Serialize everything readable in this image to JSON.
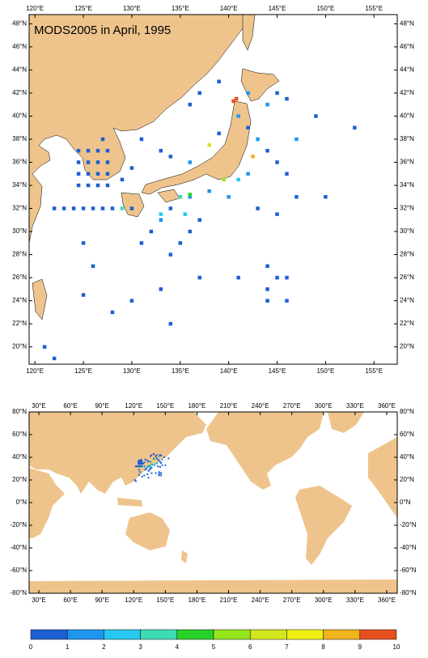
{
  "title": "MODS2005 in April, 1995",
  "maps": [
    {
      "xlim": [
        119.4,
        157.4
      ],
      "ylim": [
        18.5,
        48.8
      ],
      "xticks": [
        {
          "value": 120,
          "label": "120°E"
        },
        {
          "value": 125,
          "label": "125°E"
        },
        {
          "value": 130,
          "label": "130°E"
        },
        {
          "value": 135,
          "label": "135°E"
        },
        {
          "value": 140,
          "label": "140°E"
        },
        {
          "value": 145,
          "label": "145°E"
        },
        {
          "value": 150,
          "label": "150°E"
        },
        {
          "value": 155,
          "label": "155°E"
        }
      ],
      "yticks": [
        {
          "value": 20,
          "label": "20°N"
        },
        {
          "value": 22,
          "label": "22°N"
        },
        {
          "value": 24,
          "label": "24°N"
        },
        {
          "value": 26,
          "label": "26°N"
        },
        {
          "value": 28,
          "label": "28°N"
        },
        {
          "value": 30,
          "label": "30°N"
        },
        {
          "value": 32,
          "label": "32°N"
        },
        {
          "value": 34,
          "label": "34°N"
        },
        {
          "value": 36,
          "label": "36°N"
        },
        {
          "value": 38,
          "label": "38°N"
        },
        {
          "value": 40,
          "label": "40°N"
        },
        {
          "value": 42,
          "label": "42°N"
        },
        {
          "value": 44,
          "label": "44°N"
        },
        {
          "value": 46,
          "label": "46°N"
        },
        {
          "value": 48,
          "label": "48°N"
        }
      ]
    },
    {
      "xlim": [
        20.8,
        370
      ],
      "ylim": [
        -80,
        80
      ],
      "xticks": [
        {
          "value": 30,
          "label": "30°E"
        },
        {
          "value": 60,
          "label": "60°E"
        },
        {
          "value": 90,
          "label": "90°E"
        },
        {
          "value": 120,
          "label": "120°E"
        },
        {
          "value": 150,
          "label": "150°E"
        },
        {
          "value": 180,
          "label": "180°E"
        },
        {
          "value": 210,
          "label": "210°E"
        },
        {
          "value": 240,
          "label": "240°E"
        },
        {
          "value": 270,
          "label": "270°E"
        },
        {
          "value": 300,
          "label": "300°E"
        },
        {
          "value": 330,
          "label": "330°E"
        },
        {
          "value": 360,
          "label": "360°E"
        }
      ],
      "yticks": [
        {
          "value": -80,
          "label": "-80°N"
        },
        {
          "value": -60,
          "label": "-60°N"
        },
        {
          "value": -40,
          "label": "-40°N"
        },
        {
          "value": -20,
          "label": "-20°N"
        },
        {
          "value": 0,
          "label": "0°N"
        },
        {
          "value": 20,
          "label": "20°N"
        },
        {
          "value": 40,
          "label": "40°N"
        },
        {
          "value": 60,
          "label": "60°N"
        },
        {
          "value": 80,
          "label": "80°N"
        }
      ]
    }
  ],
  "points": {
    "lon": [
      124.5,
      125.5,
      126.5,
      127.5,
      124.5,
      125.5,
      126.5,
      127.5,
      124.5,
      125.5,
      126.5,
      127.5,
      124.5,
      125.5,
      126.5,
      127.5,
      122,
      123,
      124,
      125,
      126,
      127,
      128,
      130,
      141,
      142,
      143,
      144,
      145,
      146,
      147,
      144,
      145,
      146,
      142,
      142,
      138,
      136,
      134,
      133,
      132,
      131,
      134,
      135,
      136,
      137,
      140,
      143,
      145,
      147,
      150,
      153,
      149,
      144,
      145,
      146,
      144,
      144,
      146,
      141,
      130,
      128,
      125,
      121,
      122,
      134,
      133,
      137,
      127,
      131,
      133,
      134,
      136,
      139,
      136,
      137,
      139,
      129,
      130,
      126,
      125,
      140.8,
      140.5,
      142.5,
      139.5,
      136,
      135,
      129,
      135.5,
      133,
      141,
      138
    ],
    "lat": [
      37,
      37,
      37,
      37,
      36,
      36,
      36,
      36,
      35,
      35,
      35,
      35,
      34,
      34,
      34,
      34,
      32,
      32,
      32,
      32,
      32,
      32,
      32,
      32,
      40,
      39,
      38,
      37,
      36,
      35,
      38,
      41,
      42,
      41.5,
      42,
      35,
      33.5,
      33,
      32,
      31,
      30,
      29,
      28,
      29,
      30,
      31,
      33,
      32,
      31.5,
      33,
      33,
      39,
      40,
      27,
      26,
      26,
      25,
      24,
      24,
      26,
      24,
      23,
      24.5,
      20,
      19,
      22,
      25,
      26,
      38,
      38,
      37,
      36.5,
      36,
      38.5,
      41,
      42,
      43,
      34.5,
      35.5,
      27,
      29,
      41.5,
      41.3,
      36.5,
      34.5,
      33.2,
      33,
      32,
      31.5,
      31.5,
      34.5,
      37.5
    ],
    "values": [
      0.5,
      0.5,
      0.5,
      0.5,
      0.5,
      0.5,
      0.5,
      0.5,
      0.5,
      0.5,
      0.5,
      0.5,
      0.5,
      0.5,
      0.5,
      0.5,
      0.5,
      0.5,
      0.5,
      0.5,
      0.5,
      0.5,
      0.5,
      0.5,
      1.5,
      0.5,
      1.5,
      0.5,
      0.5,
      0.5,
      1.5,
      1.5,
      0.5,
      0.5,
      1.5,
      1.5,
      1.5,
      1.5,
      0.5,
      1.5,
      0.5,
      0.5,
      0.5,
      0.5,
      0.5,
      0.5,
      1.5,
      0.5,
      0.5,
      0.5,
      0.5,
      0.5,
      0.5,
      0.5,
      0.5,
      0.5,
      0.5,
      0.5,
      0.5,
      0.5,
      0.5,
      0.5,
      0.5,
      0.5,
      0.5,
      0.5,
      0.5,
      0.5,
      0.5,
      0.5,
      0.5,
      0.5,
      1.5,
      0.5,
      0.5,
      0.5,
      0.5,
      0.5,
      0.5,
      0.5,
      0.5,
      9.6,
      9.2,
      8.5,
      5.5,
      4.2,
      3.8,
      3.3,
      2.5,
      2.4,
      2.2,
      6.3
    ]
  },
  "colorbar": {
    "bins": [
      0,
      1,
      2,
      3,
      4,
      5,
      6,
      7,
      8,
      9,
      10
    ],
    "colors": [
      "#1e5fd2",
      "#1e96f0",
      "#28c8f0",
      "#3cdcb4",
      "#28d228",
      "#96e61e",
      "#d2e61e",
      "#f0f014",
      "#f0b41e",
      "#e6501e"
    ]
  }
}
